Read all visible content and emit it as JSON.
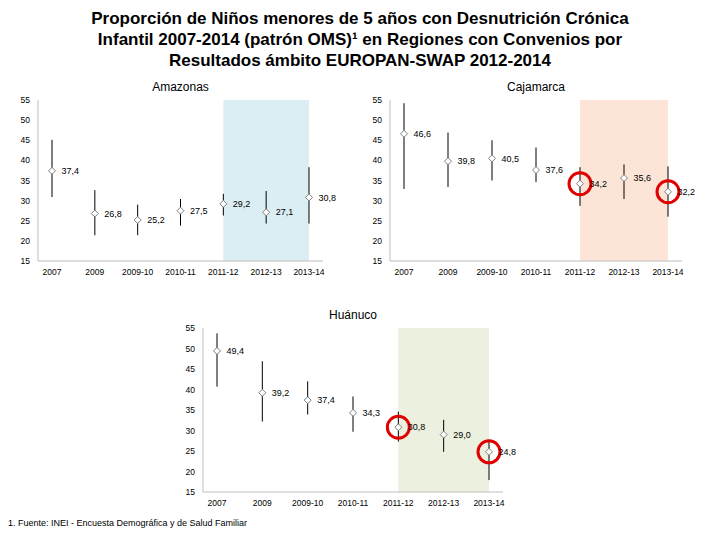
{
  "title": [
    "Proporción de Niños menores de 5 años con Desnutrición Crónica",
    "Infantil 2007-2014 (patrón OMS)¹ en Regiones con Convenios por",
    "Resultados ámbito EUROPAN-SWAP 2012-2014"
  ],
  "source": "1. Fuente: INEI - Encuesta Demográfica y de Salud Familiar",
  "chart_data": [
    {
      "type": "scatter",
      "title": "Amazonas",
      "categories": [
        "2007",
        "2009",
        "2009-10",
        "2010-11",
        "2011-12",
        "2012-13",
        "2013-14"
      ],
      "series": [
        {
          "values": [
            37.4,
            26.8,
            25.2,
            27.5,
            29.2,
            27.1,
            30.8
          ],
          "value_labels": [
            "37,4",
            "26,8",
            "25,2",
            "27,5",
            "29,2",
            "27,1",
            "30,8"
          ],
          "interval": [
            [
              30.9,
              45.1
            ],
            [
              21.4,
              32.6
            ],
            [
              21.4,
              29.0
            ],
            [
              23.8,
              30.4
            ],
            [
              26.3,
              31.7
            ],
            [
              24.3,
              32.4
            ],
            [
              24.3,
              38.3
            ]
          ],
          "color": "#7f7f7f",
          "marker": "diamond",
          "data_labels": true
        }
      ],
      "shade": {
        "from": "2011-12",
        "to": "2013-14",
        "color": "#dbeef4"
      },
      "ylim": [
        15,
        55
      ],
      "yticks": [
        15,
        20,
        25,
        30,
        35,
        40,
        45,
        50,
        55
      ],
      "grid": false
    },
    {
      "type": "scatter",
      "title": "Cajamarca",
      "categories": [
        "2007",
        "2009",
        "2009-10",
        "2010-11",
        "2011-12",
        "2012-13",
        "2013-14"
      ],
      "series": [
        {
          "values": [
            46.6,
            39.8,
            40.5,
            37.6,
            34.2,
            35.6,
            32.2
          ],
          "value_labels": [
            "46,6",
            "39,8",
            "40,5",
            "37,6",
            "34,2",
            "35,6",
            "32,2"
          ],
          "interval": [
            [
              32.9,
              54.2
            ],
            [
              33.4,
              46.9
            ],
            [
              35.0,
              45.0
            ],
            [
              34.6,
              43.2
            ],
            [
              28.7,
              38.3
            ],
            [
              30.4,
              39.0
            ],
            [
              26.0,
              38.5
            ]
          ],
          "color": "#7f7f7f",
          "marker": "diamond",
          "data_labels": true
        },
        {
          "values": [
            null,
            null,
            null,
            null,
            34.2,
            null,
            32.2
          ],
          "color": "#e00000",
          "marker": "ring"
        }
      ],
      "shade": {
        "from": "2011-12",
        "to": "2013-14",
        "color": "#fce4d6"
      },
      "ylim": [
        15,
        55
      ],
      "yticks": [
        15,
        20,
        25,
        30,
        35,
        40,
        45,
        50,
        55
      ],
      "grid": false
    },
    {
      "type": "scatter",
      "title": "Huánuco",
      "categories": [
        "2007",
        "2009",
        "2009-10",
        "2010-11",
        "2011-12",
        "2012-13",
        "2013-14"
      ],
      "series": [
        {
          "values": [
            49.4,
            39.2,
            37.4,
            34.3,
            30.8,
            29.0,
            24.8
          ],
          "value_labels": [
            "49,4",
            "39,2",
            "37,4",
            "34,3",
            "30,8",
            "29,0",
            "24,8"
          ],
          "interval": [
            [
              40.7,
              53.7
            ],
            [
              32.2,
              46.9
            ],
            [
              33.9,
              42.0
            ],
            [
              29.7,
              38.3
            ],
            [
              27.3,
              34.6
            ],
            [
              24.8,
              32.6
            ],
            [
              17.9,
              27.3
            ]
          ],
          "color": "#7f7f7f",
          "marker": "diamond",
          "data_labels": true
        },
        {
          "values": [
            null,
            null,
            null,
            null,
            30.8,
            null,
            24.8
          ],
          "color": "#e00000",
          "marker": "ring"
        }
      ],
      "shade": {
        "from": "2011-12",
        "to": "2013-14",
        "color": "#ebf1de"
      },
      "ylim": [
        15,
        55
      ],
      "yticks": [
        15,
        20,
        25,
        30,
        35,
        40,
        45,
        50,
        55
      ],
      "grid": false
    }
  ]
}
